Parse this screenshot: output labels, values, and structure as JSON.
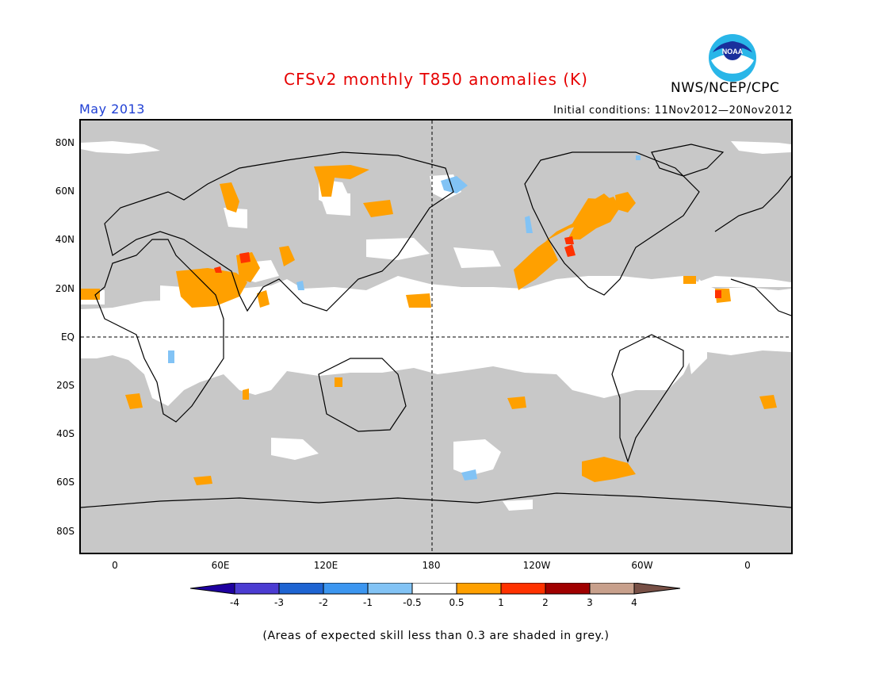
{
  "title": "CFSv2 monthly T850 anomalies (K)",
  "organization": "NWS/NCEP/CPC",
  "logo_text": "NOAA",
  "period": "May 2013",
  "initial_conditions": "Initial conditions: 11Nov2012—20Nov2012",
  "lat_labels": [
    "80N",
    "60N",
    "40N",
    "20N",
    "EQ",
    "20S",
    "40S",
    "60S",
    "80S"
  ],
  "lon_labels": [
    "0",
    "60E",
    "120E",
    "180",
    "120W",
    "60W",
    "0"
  ],
  "colorbar": {
    "labels": [
      "-4",
      "-3",
      "-2",
      "-1",
      "-0.5",
      "0.5",
      "1",
      "2",
      "3",
      "4"
    ],
    "colors": [
      "#1e00a0",
      "#4b3cd2",
      "#1e64d2",
      "#3c96f0",
      "#82c3f5",
      "#ffffff",
      "#ffa000",
      "#ff3200",
      "#a00000",
      "#c8a08c",
      "#785046"
    ]
  },
  "footnote": "(Areas of expected skill less than 0.3 are shaded in grey.)",
  "colors": {
    "title": "#e60000",
    "period": "#1f3fd4",
    "grey_mask": "#c8c8c8"
  }
}
